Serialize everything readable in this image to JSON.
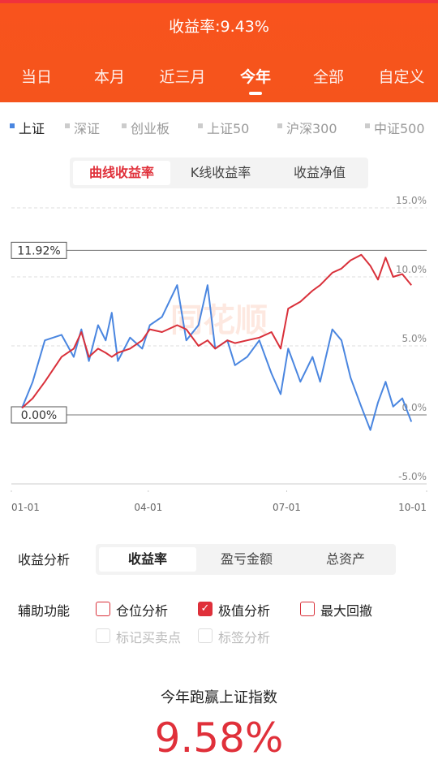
{
  "header": {
    "title": "收益率:9.43%",
    "tabs": [
      "当日",
      "本月",
      "近三月",
      "今年",
      "全部",
      "自定义"
    ],
    "active_tab": 3
  },
  "indices": [
    "上证",
    "深证",
    "创业板",
    "上证50",
    "沪深300",
    "中证500"
  ],
  "active_index": 0,
  "chart_modes": [
    "曲线收益率",
    "K线收益率",
    "收益净值"
  ],
  "active_mode": 0,
  "chart_data": {
    "type": "line",
    "watermark": "同花顺",
    "x": [
      7,
      14,
      22,
      33,
      41,
      46,
      51,
      57,
      62,
      66,
      70,
      78,
      86,
      91,
      99,
      109,
      115,
      123,
      129,
      134,
      142,
      147,
      155,
      163,
      171,
      177,
      182,
      190,
      198,
      203,
      211,
      217,
      223,
      230,
      236,
      241,
      246,
      251,
      257,
      263
    ],
    "series": [
      {
        "color": "#4a86e0",
        "values": [
          0.5,
          2.4,
          5.4,
          5.8,
          4.2,
          6.2,
          3.9,
          6.5,
          5.4,
          7.4,
          3.9,
          5.6,
          4.8,
          6.5,
          7.1,
          9.4,
          5.4,
          6.5,
          9.4,
          4.8,
          5.4,
          3.6,
          4.2,
          5.4,
          3.0,
          1.5,
          4.8,
          2.4,
          4.2,
          2.4,
          6.2,
          5.4,
          2.7,
          0.6,
          -1.1,
          0.9,
          2.4,
          0.6,
          1.2,
          -0.5
        ]
      },
      {
        "color": "#d9303a",
        "values": [
          0.5,
          1.2,
          2.4,
          4.2,
          4.8,
          6.0,
          4.2,
          4.8,
          4.5,
          4.2,
          4.5,
          4.8,
          5.4,
          6.2,
          6.0,
          6.5,
          6.2,
          5.0,
          5.4,
          4.8,
          5.4,
          5.2,
          5.4,
          5.6,
          6.0,
          4.8,
          7.7,
          8.2,
          9.0,
          9.4,
          10.3,
          10.6,
          11.2,
          11.6,
          10.8,
          9.8,
          11.4,
          10.0,
          10.2,
          9.4
        ]
      }
    ],
    "xlim": [
      0,
      273
    ],
    "xticks": [
      {
        "value": 0,
        "label": "01-01"
      },
      {
        "value": 90,
        "label": "04-01"
      },
      {
        "value": 181,
        "label": "07-01"
      },
      {
        "value": 273,
        "label": "10-01"
      }
    ],
    "ylim": [
      -5,
      15
    ],
    "yticks": [
      {
        "value": 15,
        "label": "15.0%"
      },
      {
        "value": 10,
        "label": "10.0%"
      },
      {
        "value": 5,
        "label": "5.0%"
      },
      {
        "value": 0,
        "label": "0.0%"
      },
      {
        "value": -5,
        "label": "-5.0%"
      }
    ],
    "reference_lines": [
      {
        "value": 11.92,
        "label": "11.92%"
      },
      {
        "value": 0,
        "label": "0.00%"
      }
    ],
    "grid": true
  },
  "analysis": {
    "label": "收益分析",
    "tabs": [
      "收益率",
      "盈亏金额",
      "总资产"
    ],
    "active_tab": 0
  },
  "aux": {
    "label": "辅助功能",
    "options": [
      {
        "label": "仓位分析",
        "checked": false,
        "disabled": false
      },
      {
        "label": "极值分析",
        "checked": true,
        "disabled": false
      },
      {
        "label": "最大回撤",
        "checked": false,
        "disabled": false
      },
      {
        "label": "标记买卖点",
        "checked": false,
        "disabled": true
      },
      {
        "label": "标签分析",
        "checked": false,
        "disabled": true
      }
    ]
  },
  "summary": {
    "label": "今年跑赢上证指数",
    "value": 9.58,
    "value_label": "9.58%"
  }
}
